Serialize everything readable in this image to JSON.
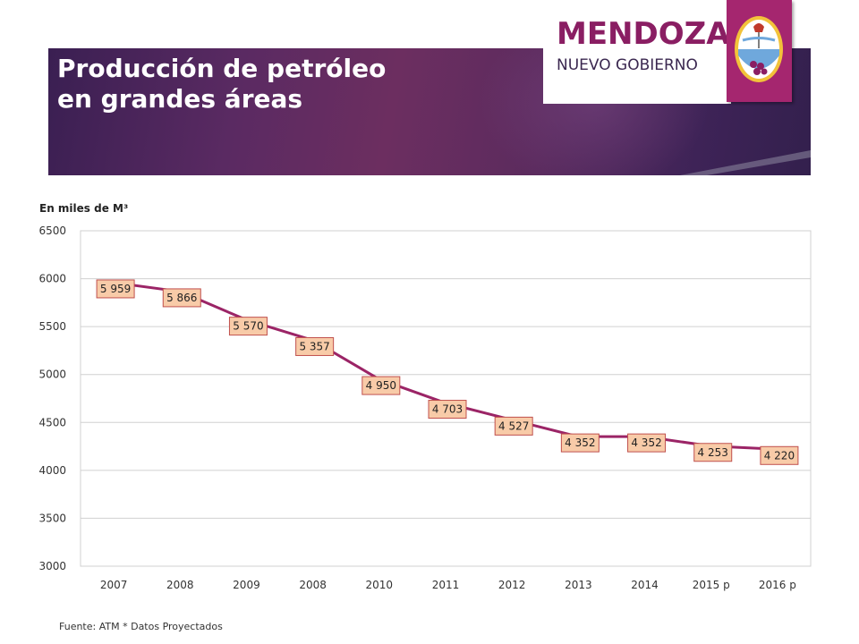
{
  "header": {
    "title_line1": "Producción de petróleo",
    "title_line2": "en grandes áreas",
    "logo_main": "MENDOZA",
    "logo_sub": "NUEVO GOBIERNO",
    "accent_color": "#a5266f",
    "banner_color": "#4a2558"
  },
  "chart_data": {
    "type": "line",
    "ylabel": "En miles de M³",
    "categories": [
      "2007",
      "2008",
      "2009",
      "2008",
      "2010",
      "2011",
      "2012",
      "2013",
      "2014",
      "2015 p",
      "2016 p"
    ],
    "values": [
      5959,
      5866,
      5570,
      5357,
      4950,
      4703,
      4527,
      4352,
      4352,
      4253,
      4220
    ],
    "data_labels": [
      "5 959",
      "5 866",
      "5 570",
      "5 357",
      "4 950",
      "4 703",
      "4 527",
      "4 352",
      "4 352",
      "4 253",
      "4 220"
    ],
    "ylim": [
      3000,
      6500
    ],
    "yticks": [
      3000,
      3500,
      4000,
      4500,
      5000,
      5500,
      6000,
      6500
    ],
    "grid": true,
    "line_color": "#9b2466",
    "label_fill": "#f8cba8",
    "label_stroke": "#c0504d"
  },
  "footer": {
    "source": "Fuente: ATM * Datos Proyectados"
  }
}
